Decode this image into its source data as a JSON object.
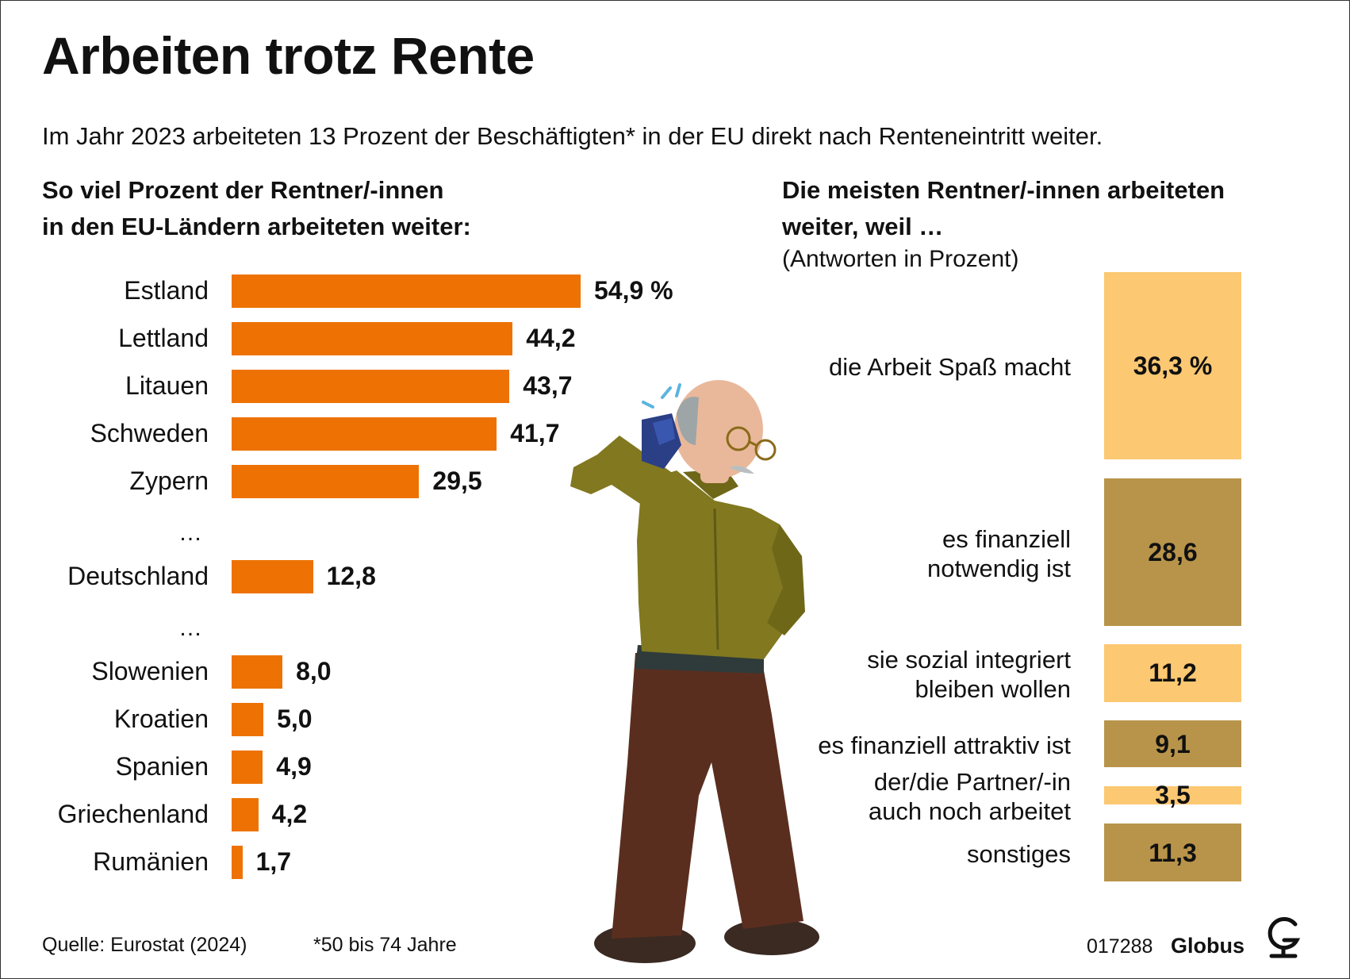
{
  "title": "Arbeiten trotz Rente",
  "subtitle": "Im Jahr 2023 arbeiteten 13 Prozent der Beschäftigten* in der EU direkt nach Renteneintritt weiter.",
  "colors": {
    "left_bar": "#ed7203",
    "right_light": "#fcc872",
    "right_dark": "#b8944a",
    "text": "#111111"
  },
  "left_heading": [
    "So viel Prozent der Rentner/-innen",
    "in den EU-Ländern arbeiteten weiter:"
  ],
  "right_heading": [
    "Die meisten Rentner/-innen arbeiteten",
    "weiter, weil …"
  ],
  "right_note": "(Antworten in Prozent)",
  "ellipsis": "…",
  "chart_data": [
    {
      "type": "bar",
      "orientation": "horizontal",
      "title": "So viel Prozent der Rentner/-innen in den EU-Ländern arbeiteten weiter:",
      "unit": "%",
      "categories": [
        "Estland",
        "Lettland",
        "Litauen",
        "Schweden",
        "Zypern",
        "Deutschland",
        "Slowenien",
        "Kroatien",
        "Spanien",
        "Griechenland",
        "Rumänien"
      ],
      "values": [
        54.9,
        44.2,
        43.7,
        41.7,
        29.5,
        12.8,
        8.0,
        5.0,
        4.9,
        4.2,
        1.7
      ],
      "labels": [
        "54,9 %",
        "44,2",
        "43,7",
        "41,7",
        "29,5",
        "12,8",
        "8,0",
        "5,0",
        "4,9",
        "4,2",
        "1,7"
      ],
      "gap_after": [
        "Zypern",
        "Deutschland"
      ],
      "xlim": [
        0,
        54.9
      ]
    },
    {
      "type": "bar",
      "orientation": "stacked-vertical",
      "title": "Die meisten Rentner/-innen arbeiteten weiter, weil … (Antworten in Prozent)",
      "unit": "%",
      "categories": [
        [
          "die Arbeit Spaß macht"
        ],
        [
          "es finanziell",
          "notwendig ist"
        ],
        [
          "sie sozial integriert",
          "bleiben wollen"
        ],
        [
          "es finanziell attraktiv ist"
        ],
        [
          "der/die Partner/-in",
          "auch noch arbeitet"
        ],
        [
          "sonstiges"
        ]
      ],
      "values": [
        36.3,
        28.6,
        11.2,
        9.1,
        3.5,
        11.3
      ],
      "labels": [
        "36,3 %",
        "28,6",
        "11,2",
        "9,1",
        "3,5",
        "11,3"
      ],
      "shades": [
        "light",
        "dark",
        "light",
        "dark",
        "light",
        "dark"
      ]
    }
  ],
  "footer": {
    "source": "Quelle: Eurostat (2024)",
    "note": "*50 bis 74 Jahre",
    "id": "017288",
    "brand": "Globus"
  }
}
